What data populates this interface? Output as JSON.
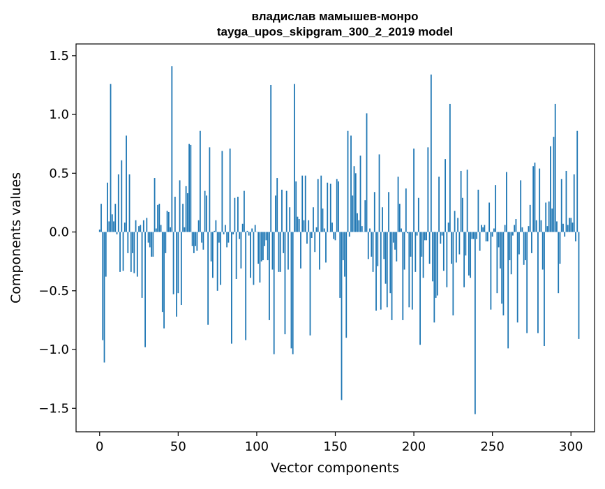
{
  "chart_data": {
    "type": "bar",
    "title": "владислав мамышев-монро",
    "subtitle": "tayga_upos_skipgram_300_2_2019 model",
    "xlabel": "Vector components",
    "ylabel": "Components values",
    "xlim": [
      -15,
      315
    ],
    "ylim": [
      -1.7,
      1.6
    ],
    "xticks": [
      0,
      50,
      100,
      150,
      200,
      250,
      300
    ],
    "yticks": [
      -1.5,
      -1.0,
      -0.5,
      0.0,
      0.5,
      1.0,
      1.5
    ],
    "xtick_labels": [
      "0",
      "50",
      "100",
      "150",
      "200",
      "250",
      "300"
    ],
    "ytick_labels": [
      "−1.5",
      "−1.0",
      "−0.5",
      "0.0",
      "0.5",
      "1.0",
      "1.5"
    ],
    "grid": false,
    "bar_color": "#1f77b4",
    "values": [
      0.02,
      0.24,
      -0.92,
      -1.11,
      -0.38,
      0.42,
      0.09,
      1.26,
      0.15,
      0.09,
      0.24,
      -0.02,
      0.49,
      -0.34,
      0.61,
      -0.33,
      0.08,
      0.82,
      -0.18,
      0.49,
      -0.34,
      -0.18,
      -0.35,
      0.1,
      -0.38,
      0.05,
      0.06,
      -0.56,
      0.1,
      -0.98,
      0.12,
      -0.09,
      -0.13,
      -0.21,
      -0.21,
      0.46,
      0.03,
      0.23,
      0.24,
      0.06,
      -0.68,
      -0.82,
      -0.18,
      0.18,
      0.17,
      0.04,
      1.41,
      -0.53,
      0.3,
      -0.72,
      -0.52,
      0.44,
      -0.62,
      0.24,
      0.04,
      0.39,
      0.33,
      0.75,
      0.74,
      -0.12,
      -0.18,
      -0.12,
      -0.16,
      0.1,
      0.86,
      -0.09,
      -0.15,
      0.35,
      0.31,
      -0.79,
      0.72,
      -0.25,
      -0.39,
      0.01,
      0.1,
      -0.5,
      -0.09,
      -0.45,
      0.69,
      -0.02,
      0.06,
      -0.13,
      -0.09,
      0.71,
      -0.95,
      -0.02,
      0.29,
      -0.4,
      0.3,
      -0.06,
      -0.31,
      0.07,
      0.35,
      -0.92,
      0.01,
      -0.03,
      -0.39,
      0.03,
      -0.45,
      0.06,
      0.0,
      -0.27,
      -0.43,
      -0.25,
      -0.24,
      -0.12,
      -0.07,
      -0.24,
      -0.75,
      1.25,
      -0.32,
      -1.04,
      0.31,
      0.46,
      -0.34,
      -0.34,
      0.36,
      -0.18,
      -0.87,
      0.35,
      -0.32,
      0.21,
      -0.99,
      -1.04,
      1.26,
      0.43,
      0.13,
      0.11,
      -0.31,
      0.48,
      0.1,
      0.48,
      -0.1,
      0.1,
      -0.88,
      -0.05,
      0.21,
      -0.17,
      0.04,
      0.45,
      -0.32,
      0.48,
      0.2,
      0.03,
      -0.26,
      0.42,
      0.0,
      0.41,
      0.08,
      -0.06,
      -0.07,
      0.45,
      0.43,
      -0.56,
      -1.43,
      -0.24,
      -0.38,
      -0.9,
      0.86,
      -0.04,
      0.82,
      0.31,
      0.56,
      0.5,
      0.16,
      0.1,
      0.65,
      0.05,
      0.0,
      0.27,
      1.01,
      -0.23,
      0.03,
      -0.21,
      -0.34,
      0.34,
      -0.67,
      -0.29,
      0.66,
      -0.66,
      0.21,
      -0.23,
      -0.44,
      -0.64,
      0.34,
      -0.52,
      -0.75,
      -0.09,
      -0.15,
      -0.25,
      0.47,
      0.24,
      0.03,
      -0.75,
      -0.32,
      0.37,
      -0.01,
      -0.64,
      -0.21,
      -0.66,
      0.71,
      -0.34,
      -0.03,
      0.29,
      -0.96,
      -0.21,
      -0.39,
      -0.07,
      -0.07,
      0.72,
      -0.27,
      1.34,
      -0.42,
      -0.77,
      -0.56,
      -0.54,
      0.47,
      -0.1,
      -0.03,
      -0.33,
      0.62,
      -0.47,
      0.08,
      1.09,
      -0.27,
      -0.71,
      0.18,
      -0.26,
      0.12,
      -0.19,
      0.52,
      0.29,
      -0.47,
      -0.2,
      0.53,
      -0.37,
      -0.39,
      -0.06,
      -0.06,
      -1.55,
      -0.06,
      0.36,
      -0.16,
      0.06,
      0.04,
      0.06,
      -0.08,
      -0.08,
      0.25,
      -0.66,
      -0.04,
      0.03,
      0.4,
      -0.52,
      -0.13,
      -0.31,
      -0.61,
      -0.71,
      0.06,
      0.51,
      -0.99,
      -0.24,
      -0.36,
      -0.03,
      0.06,
      0.11,
      -0.77,
      -0.19,
      0.44,
      0.04,
      -0.28,
      -0.24,
      -0.86,
      0.05,
      0.23,
      -0.18,
      0.56,
      0.59,
      0.1,
      -0.86,
      0.54,
      0.1,
      -0.32,
      -0.97,
      0.25,
      0.05,
      0.26,
      0.73,
      0.2,
      0.81,
      1.09,
      0.09,
      -0.52,
      -0.27,
      0.45,
      0.07,
      -0.04,
      0.52,
      0.06,
      0.12,
      0.12,
      0.08,
      0.49,
      -0.08,
      0.86,
      -0.91
    ]
  }
}
